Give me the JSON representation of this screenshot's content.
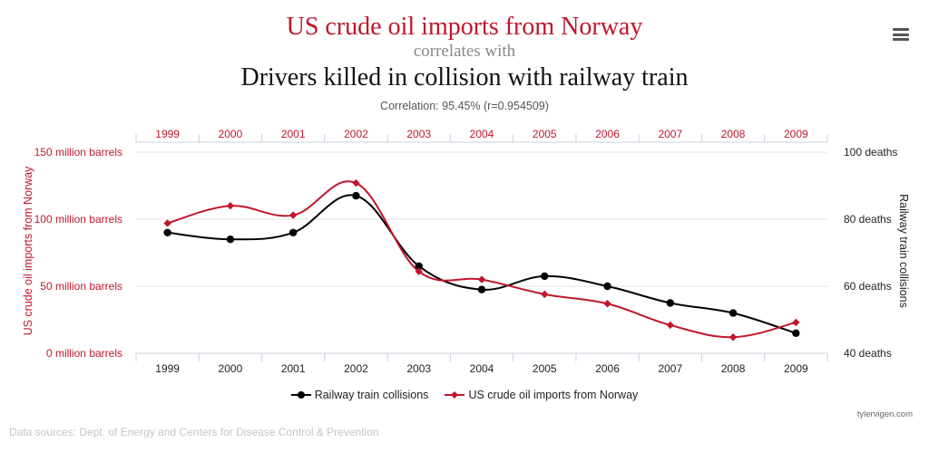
{
  "header": {
    "title_line1": "US crude oil imports from Norway",
    "title_line2": "correlates with",
    "title_line3": "Drivers killed in collision with railway train",
    "correlation": "Correlation: 95.45% (r=0.954509)"
  },
  "menu": {
    "icon": "hamburger-menu-icon"
  },
  "colors": {
    "oil": "#c0162d",
    "rail": "#000000"
  },
  "chart_data": {
    "type": "line",
    "x": [
      "1999",
      "2000",
      "2001",
      "2002",
      "2003",
      "2004",
      "2005",
      "2006",
      "2007",
      "2008",
      "2009"
    ],
    "left_axis": {
      "label": "US crude oil imports from Norway",
      "ticks": [
        "0 million barrels",
        "50 million barrels",
        "100 million barrels",
        "150 million barrels"
      ],
      "range": [
        0,
        150
      ],
      "unit": "million barrels"
    },
    "right_axis": {
      "label": "Railway train collisions",
      "ticks": [
        "40 deaths",
        "60 deaths",
        "80 deaths",
        "100 deaths"
      ],
      "range": [
        40,
        100
      ],
      "unit": "deaths"
    },
    "series": [
      {
        "name": "Railway train collisions",
        "axis": "right",
        "color": "#000000",
        "marker": "circle",
        "values": [
          76,
          74,
          76,
          87,
          66,
          59,
          63,
          60,
          55,
          52,
          46
        ]
      },
      {
        "name": "US crude oil imports from Norway",
        "axis": "left",
        "color": "#c0162d",
        "marker": "diamond",
        "values": [
          97,
          110,
          103,
          127,
          61,
          55,
          44,
          37,
          21,
          12,
          23
        ]
      }
    ],
    "grid": true,
    "legend_position": "bottom-center"
  },
  "credit": "tylervigen.com",
  "sources": "Data sources: Dept. of Energy and Centers for Disease Control & Prevention"
}
